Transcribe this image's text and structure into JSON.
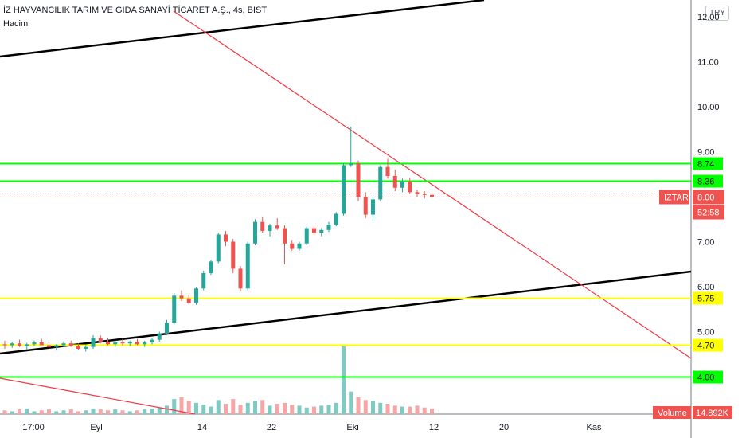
{
  "header": {
    "title": "İZ HAYVANCILIK TARIM VE GIDA SANAYİ TİCARET A.Ş., 4s, BIST",
    "subtitle": "Hacim"
  },
  "currency_button": "TRY",
  "colors": {
    "up": "#26a69a",
    "down": "#ef5350",
    "vol_up": "#7fcac3",
    "vol_down": "#f5a6a5",
    "green_level": "#00ff00",
    "yellow_level": "#ffff00",
    "trend_red": "#f23645",
    "trend_black": "#000000",
    "price_tag": "#ef5350",
    "volume_tag": "#ef5350"
  },
  "chart_data": {
    "type": "candlestick",
    "y_axis_ticks": [
      "12.00",
      "11.00",
      "10.00",
      "9.00",
      "7.00",
      "6.00",
      "5.00"
    ],
    "x_axis_ticks": [
      "17:00",
      "Eyl",
      "14",
      "22",
      "Eki",
      "12",
      "20",
      "Kas"
    ],
    "levels": [
      {
        "label": "8.74",
        "color": "green",
        "price": 8.74
      },
      {
        "label": "8.36",
        "color": "green",
        "price": 8.36
      },
      {
        "label": "5.75",
        "color": "yellow",
        "price": 5.75
      },
      {
        "label": "4.70",
        "color": "yellow",
        "price": 4.7
      },
      {
        "label": "4.00",
        "color": "green",
        "price": 4.0
      }
    ],
    "last_price": {
      "symbol": "IZTAR",
      "value": "8.00",
      "countdown": "52:58",
      "price": 8.0
    },
    "volume": {
      "label": "Volume",
      "value": "14.892K"
    },
    "candles": [
      [
        4.72,
        4.8,
        4.62,
        4.7
      ],
      [
        4.7,
        4.78,
        4.64,
        4.74
      ],
      [
        4.74,
        4.82,
        4.66,
        4.68
      ],
      [
        4.68,
        4.75,
        4.6,
        4.72
      ],
      [
        4.72,
        4.8,
        4.68,
        4.76
      ],
      [
        4.76,
        4.84,
        4.7,
        4.7
      ],
      [
        4.7,
        4.76,
        4.62,
        4.66
      ],
      [
        4.66,
        4.72,
        4.58,
        4.7
      ],
      [
        4.7,
        4.78,
        4.66,
        4.74
      ],
      [
        4.74,
        4.8,
        4.66,
        4.68
      ],
      [
        4.68,
        4.74,
        4.6,
        4.62
      ],
      [
        4.62,
        4.7,
        4.56,
        4.66
      ],
      [
        4.66,
        4.92,
        4.62,
        4.86
      ],
      [
        4.86,
        4.92,
        4.74,
        4.78
      ],
      [
        4.78,
        4.86,
        4.7,
        4.72
      ],
      [
        4.72,
        4.8,
        4.66,
        4.76
      ],
      [
        4.76,
        4.84,
        4.7,
        4.74
      ],
      [
        4.74,
        4.8,
        4.68,
        4.78
      ],
      [
        4.78,
        4.84,
        4.7,
        4.72
      ],
      [
        4.72,
        4.8,
        4.66,
        4.76
      ],
      [
        4.76,
        4.86,
        4.72,
        4.82
      ],
      [
        4.82,
        5.0,
        4.78,
        4.96
      ],
      [
        4.96,
        5.26,
        4.92,
        5.2
      ],
      [
        5.2,
        5.86,
        5.16,
        5.8
      ],
      [
        5.8,
        5.92,
        5.68,
        5.74
      ],
      [
        5.74,
        5.82,
        5.6,
        5.64
      ],
      [
        5.64,
        6.0,
        5.6,
        5.96
      ],
      [
        5.96,
        6.36,
        5.92,
        6.3
      ],
      [
        6.3,
        6.6,
        6.26,
        6.56
      ],
      [
        6.56,
        7.2,
        6.52,
        7.16
      ],
      [
        7.16,
        7.24,
        6.9,
        7.0
      ],
      [
        7.0,
        7.06,
        6.3,
        6.4
      ],
      [
        6.4,
        6.46,
        5.9,
        5.96
      ],
      [
        5.96,
        7.0,
        5.92,
        6.96
      ],
      [
        6.96,
        7.5,
        6.92,
        7.44
      ],
      [
        7.44,
        7.56,
        7.2,
        7.24
      ],
      [
        7.24,
        7.4,
        7.12,
        7.36
      ],
      [
        7.36,
        7.52,
        7.26,
        7.3
      ],
      [
        7.3,
        7.36,
        6.5,
        6.96
      ],
      [
        6.96,
        7.04,
        6.8,
        6.84
      ],
      [
        6.84,
        7.0,
        6.8,
        6.96
      ],
      [
        6.96,
        7.34,
        6.92,
        7.3
      ],
      [
        7.3,
        7.34,
        7.14,
        7.2
      ],
      [
        7.2,
        7.3,
        7.12,
        7.26
      ],
      [
        7.26,
        7.44,
        7.22,
        7.38
      ],
      [
        7.38,
        7.66,
        7.34,
        7.62
      ],
      [
        7.62,
        8.74,
        7.58,
        8.7
      ],
      [
        8.7,
        9.56,
        8.66,
        8.74
      ],
      [
        8.74,
        8.8,
        7.9,
        8.0
      ],
      [
        8.0,
        8.1,
        7.52,
        7.6
      ],
      [
        7.6,
        8.0,
        7.46,
        7.94
      ],
      [
        7.94,
        8.7,
        7.9,
        8.66
      ],
      [
        8.66,
        8.84,
        8.4,
        8.46
      ],
      [
        8.46,
        8.6,
        8.12,
        8.2
      ],
      [
        8.2,
        8.4,
        8.1,
        8.34
      ],
      [
        8.34,
        8.42,
        8.06,
        8.1
      ],
      [
        8.1,
        8.16,
        8.0,
        8.06
      ],
      [
        8.06,
        8.12,
        7.96,
        8.04
      ],
      [
        8.04,
        8.1,
        7.98,
        8.0
      ]
    ],
    "volumes": [
      4,
      3,
      5,
      6,
      3,
      4,
      5,
      3,
      4,
      5,
      3,
      4,
      6,
      5,
      4,
      5,
      4,
      3,
      4,
      5,
      6,
      7,
      9,
      16,
      18,
      14,
      12,
      10,
      8,
      15,
      11,
      16,
      10,
      12,
      14,
      15,
      9,
      11,
      12,
      10,
      9,
      7,
      8,
      9,
      10,
      12,
      72,
      24,
      18,
      15,
      14,
      12,
      11,
      9,
      8,
      8,
      9,
      7,
      6
    ]
  }
}
